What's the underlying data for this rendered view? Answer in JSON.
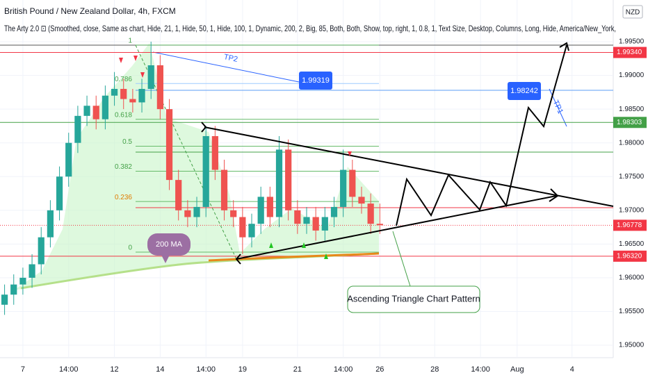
{
  "chart_data": {
    "type": "candlestick",
    "title": "British Pound / New Zealand Dollar, 4h, FXCM",
    "subtitle": "The Arty 2.0 ⊡ (Smoothed, close, Same as chart, Hide, 21, 1, Hide, 50, 1, Hide, 100, 1, Dynamic, 200, 2, Big, 85, Both, Both, Show, top, right, 1, 0.8, 1, Text Size, Desktop, Columns, Long, Hide, America/New_York,",
    "currency": "NZD",
    "categories": [
      null,
      null,
      "7",
      null,
      null,
      null,
      null,
      "14:00",
      null,
      null,
      null,
      null,
      "12",
      null,
      null,
      null,
      null,
      "14",
      null,
      null,
      null,
      null,
      "14:00",
      null,
      null,
      null,
      "19",
      null,
      null,
      null,
      null,
      null,
      "21",
      null,
      null,
      null,
      null,
      "14:00",
      null,
      null,
      null,
      "26",
      null,
      null,
      null,
      null,
      null,
      "28",
      null,
      null,
      null,
      null,
      "14:00",
      null,
      null,
      null,
      "Aug",
      null,
      null,
      null,
      null,
      null,
      "4",
      null,
      null,
      null,
      null
    ],
    "open": [
      1.956,
      1.9575,
      1.959,
      1.96,
      1.962,
      1.966,
      1.97,
      1.975,
      1.98,
      1.984,
      1.9855,
      1.9835,
      1.987,
      1.988,
      1.9865,
      1.986,
      1.988,
      1.9915,
      1.985,
      1.9745,
      1.97,
      1.969,
      1.9705,
      1.981,
      1.976,
      1.97,
      1.969,
      1.966,
      1.968,
      1.972,
      1.969,
      1.979,
      1.97,
      1.968,
      1.969,
      1.967,
      1.969,
      1.9705,
      1.976,
      1.972,
      1.971,
      1.968,
      null,
      null,
      null,
      null,
      null,
      null,
      null,
      null,
      null,
      null,
      null,
      null,
      null,
      null,
      null,
      null,
      null,
      null,
      null,
      null,
      null,
      null,
      null,
      null,
      null
    ],
    "high": [
      1.959,
      1.9605,
      1.9615,
      1.9635,
      1.9675,
      1.9715,
      1.9765,
      1.9815,
      1.9855,
      1.987,
      1.987,
      1.9885,
      1.9905,
      1.9895,
      1.988,
      1.9895,
      1.995,
      1.993,
      1.9865,
      1.976,
      1.9715,
      1.972,
      1.9825,
      1.9825,
      1.9775,
      1.9715,
      1.9705,
      1.9695,
      1.9735,
      1.9735,
      1.981,
      1.9805,
      1.9715,
      1.9705,
      1.9705,
      1.9705,
      1.972,
      1.979,
      1.9775,
      1.9735,
      1.9725,
      1.971,
      null,
      null,
      null,
      null,
      null,
      null,
      null,
      null,
      null,
      null,
      null,
      null,
      null,
      null,
      null,
      null,
      null,
      null,
      null,
      null,
      null,
      null,
      null,
      null,
      null
    ],
    "low": [
      1.9545,
      1.956,
      1.9575,
      1.9585,
      1.9605,
      1.9645,
      1.9685,
      1.9735,
      1.9785,
      1.9825,
      1.982,
      1.982,
      1.9855,
      1.985,
      1.9845,
      1.9845,
      1.9865,
      1.9835,
      1.973,
      1.9685,
      1.9675,
      1.9675,
      1.969,
      1.9745,
      1.9685,
      1.9675,
      1.9635,
      1.9645,
      1.9665,
      1.9675,
      1.9675,
      1.9685,
      1.9665,
      1.9665,
      1.9655,
      1.9655,
      1.9675,
      1.969,
      1.9705,
      1.9695,
      1.9665,
      1.9665,
      null,
      null,
      null,
      null,
      null,
      null,
      null,
      null,
      null,
      null,
      null,
      null,
      null,
      null,
      null,
      null,
      null,
      null,
      null,
      null,
      null,
      null,
      null,
      null,
      null
    ],
    "close": [
      1.9575,
      1.959,
      1.96,
      1.962,
      1.966,
      1.97,
      1.975,
      1.98,
      1.984,
      1.9855,
      1.9835,
      1.987,
      1.988,
      1.9865,
      1.986,
      1.988,
      1.9915,
      1.985,
      1.9745,
      1.97,
      1.969,
      1.9705,
      1.981,
      1.976,
      1.97,
      1.969,
      1.966,
      1.968,
      1.972,
      1.969,
      1.979,
      1.97,
      1.968,
      1.969,
      1.967,
      1.969,
      1.9705,
      1.976,
      1.972,
      1.971,
      1.968,
      1.9678,
      null,
      null,
      null,
      null,
      null,
      null,
      null,
      null,
      null,
      null,
      null,
      null,
      null,
      null,
      null,
      null,
      null,
      null,
      null,
      null,
      null,
      null,
      null,
      null,
      null
    ],
    "up_color": "#26a69a",
    "down_color": "#ef5350",
    "ylim": [
      1.94815,
      2.00118
    ],
    "yticks": [
      {
        "value": 1.95,
        "label": "1.95000"
      },
      {
        "value": 1.955,
        "label": "1.95500"
      },
      {
        "value": 1.96,
        "label": "1.96000"
      },
      {
        "value": 1.965,
        "label": "1.96500"
      },
      {
        "value": 1.97,
        "label": "1.97000"
      },
      {
        "value": 1.975,
        "label": "1.97500"
      },
      {
        "value": 1.98,
        "label": "1.98000"
      },
      {
        "value": 1.985,
        "label": "1.98500"
      },
      {
        "value": 1.99,
        "label": "1.99000"
      },
      {
        "value": 1.995,
        "label": "1.99500"
      }
    ],
    "price_lines": [
      {
        "value": 1.9934,
        "label": "1.99340",
        "color": "#f23645"
      },
      {
        "value": 1.98303,
        "label": "1.98303",
        "color": "#43a047"
      },
      {
        "value": 1.96778,
        "label": "1.96778",
        "color": "#f23645"
      },
      {
        "value": 1.9632,
        "label": "1.96320",
        "color": "#f23645"
      }
    ],
    "fib": {
      "levels": [
        1,
        0.786,
        0.618,
        0.5,
        0.382,
        0.236,
        0
      ],
      "prices": [
        1.9945,
        1.9888,
        1.9835,
        1.9795,
        1.9758,
        1.9713,
        1.9638
      ]
    },
    "annotations": {
      "tp2": "TP2",
      "tp1": "TP1",
      "target2": "1.99319",
      "target1": "1.98242",
      "ma": "200 MA",
      "pattern": "Ascending Triangle Chart Pattern"
    }
  }
}
